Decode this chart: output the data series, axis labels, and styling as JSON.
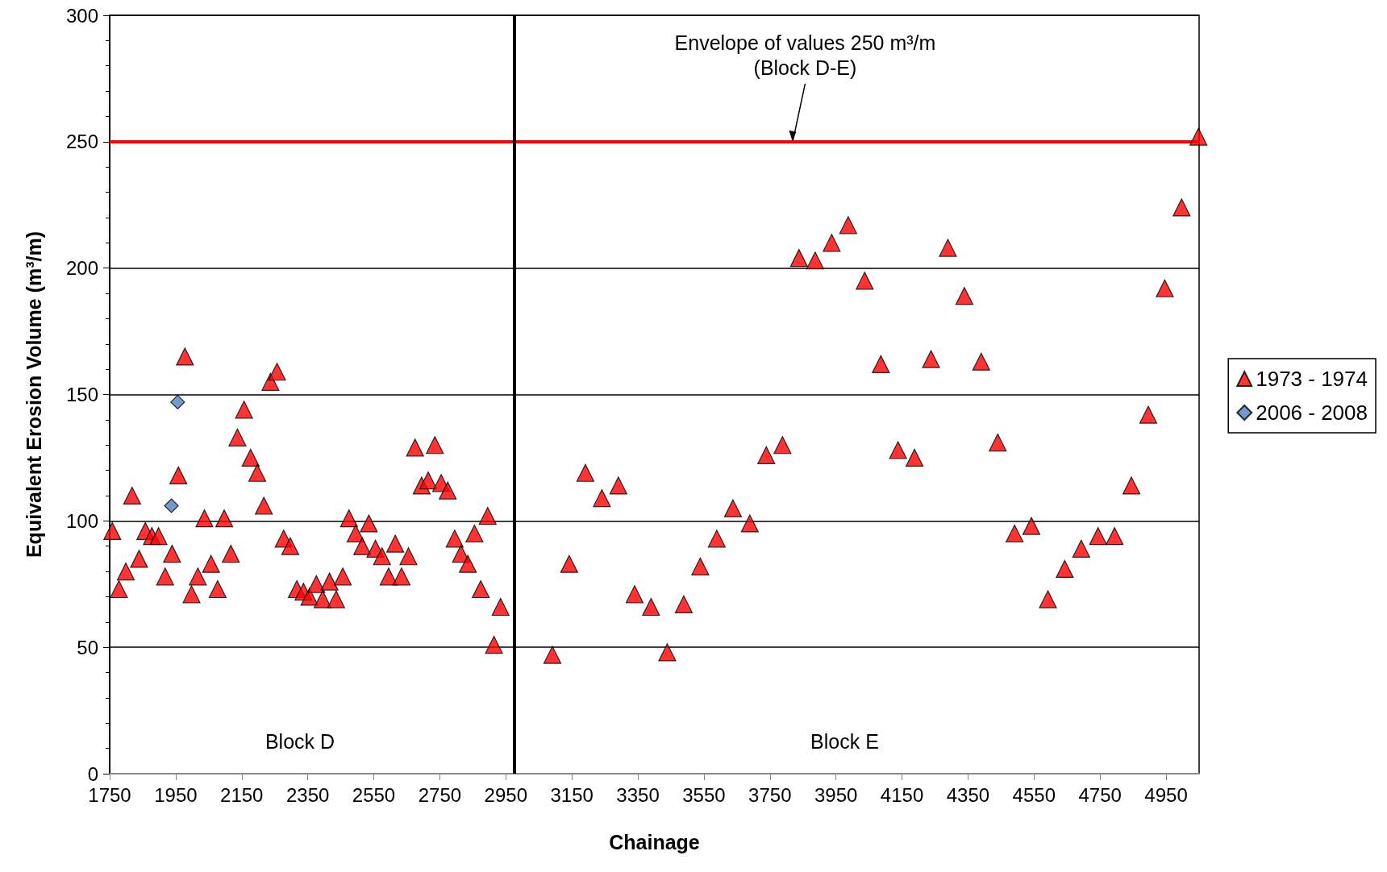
{
  "chart_data": {
    "type": "scatter",
    "xlabel": "Chainage",
    "ylabel": "Equivalent Erosion Volume (m³/m)",
    "xlim": [
      1750,
      5050
    ],
    "xticks": [
      1750,
      1950,
      2150,
      2350,
      2550,
      2750,
      2950,
      3150,
      3350,
      3550,
      3750,
      3950,
      4150,
      4350,
      4550,
      4750,
      4950
    ],
    "ylim": [
      0,
      300
    ],
    "yticks": [
      0,
      50,
      100,
      150,
      200,
      250,
      300
    ],
    "grid": "y",
    "legend": "right",
    "series": [
      {
        "name": "1973 - 1974",
        "color": "#ff0000",
        "marker": "triangle",
        "x": [
          1758,
          1778,
          1799,
          1818,
          1839,
          1858,
          1878,
          1898,
          1918,
          1939,
          1958,
          1978,
          1998,
          2017,
          2037,
          2057,
          2077,
          2097,
          2117,
          2137,
          2157,
          2177,
          2197,
          2217,
          2237,
          2257,
          2277,
          2297,
          2317,
          2337,
          2355,
          2376,
          2395,
          2416,
          2436,
          2456,
          2475,
          2495,
          2515,
          2535,
          2555,
          2575,
          2595,
          2615,
          2634,
          2655,
          2675,
          2695,
          2715,
          2735,
          2754,
          2774,
          2795,
          2814,
          2835,
          2855,
          2874,
          2895,
          2914,
          2934,
          3091,
          3142,
          3191,
          3241,
          3291,
          3340,
          3390,
          3439,
          3489,
          3539,
          3589,
          3638,
          3689,
          3739,
          3788,
          3838,
          3887,
          3937,
          3987,
          4037,
          4086,
          4138,
          4188,
          4238,
          4289,
          4339,
          4390,
          4440,
          4491,
          4542,
          4592,
          4643,
          4693,
          4744,
          4794,
          4845,
          4896,
          4946,
          4997,
          5048
        ],
        "values": [
          96,
          73,
          80,
          110,
          85,
          96,
          94,
          94,
          78,
          87,
          118,
          165,
          71,
          78,
          101,
          83,
          73,
          101,
          87,
          133,
          144,
          125,
          119,
          106,
          155,
          159,
          93,
          90,
          73,
          72,
          70,
          75,
          69,
          76,
          69,
          78,
          101,
          95,
          90,
          99,
          89,
          86,
          78,
          91,
          78,
          86,
          129,
          114,
          116,
          130,
          115,
          112,
          93,
          87,
          83,
          95,
          73,
          102,
          51,
          66,
          47,
          83,
          119,
          109,
          114,
          71,
          66,
          48,
          67,
          82,
          93,
          105,
          99,
          126,
          130,
          204,
          203,
          210,
          217,
          195,
          162,
          128,
          125,
          164,
          208,
          189,
          163,
          131,
          95,
          98,
          69,
          81,
          89,
          94,
          94,
          114,
          142,
          192,
          224,
          252
        ]
      },
      {
        "name": "2006 - 2008",
        "color": "#4f81bd",
        "marker": "diamond",
        "x": [
          1937,
          1956
        ],
        "values": [
          106,
          147
        ]
      }
    ],
    "ref_lines": [
      {
        "axis": "y",
        "value": 250,
        "color": "#ff0000"
      },
      {
        "axis": "x",
        "value": 2976,
        "color": "#000000"
      }
    ],
    "annotations": [
      {
        "text": "Envelope of values 250 m³/m\n(Block D-E)",
        "x": 3820,
        "y": 250
      },
      "Block D",
      "Block E"
    ]
  }
}
